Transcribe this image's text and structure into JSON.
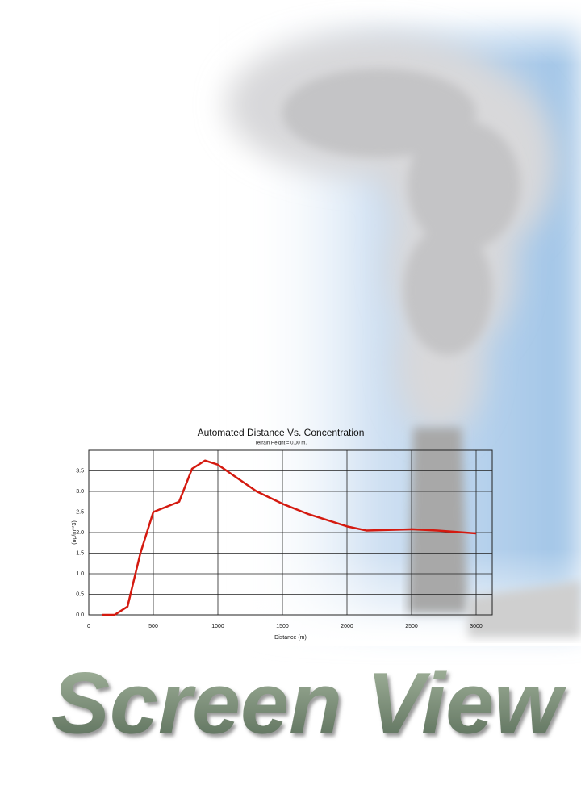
{
  "chart_data": {
    "type": "line",
    "title": "Automated Distance Vs. Concentration",
    "subtitle": "Terrain Height = 0.00 m.",
    "x_label": "Distance (m)",
    "y_label": "(ug/m**3)",
    "x": [
      100,
      200,
      300,
      400,
      500,
      700,
      800,
      900,
      1000,
      1300,
      1500,
      1700,
      2000,
      2150,
      2500,
      2700,
      3000
    ],
    "values": [
      0,
      0,
      0.2,
      1.5,
      2.5,
      2.75,
      3.55,
      3.75,
      3.65,
      3.0,
      2.7,
      2.45,
      2.15,
      2.05,
      2.08,
      2.05,
      1.98
    ],
    "color": "#d41a10",
    "xlim": [
      0,
      3125
    ],
    "ylim": [
      0,
      4
    ],
    "xticks": [
      0,
      500,
      1000,
      1500,
      2000,
      2500,
      3000
    ],
    "yticks": [
      {
        "value": 0,
        "label": "0.0"
      },
      {
        "value": 0.5,
        "label": "0.5"
      },
      {
        "value": 1,
        "label": "1.0"
      },
      {
        "value": 1.5,
        "label": "1.5"
      },
      {
        "value": 2,
        "label": "2.0"
      },
      {
        "value": 2.5,
        "label": "2.5"
      },
      {
        "value": 3,
        "label": "3.0"
      },
      {
        "value": 3.5,
        "label": "3.5"
      }
    ],
    "grid": true
  },
  "banner": "Screen View"
}
